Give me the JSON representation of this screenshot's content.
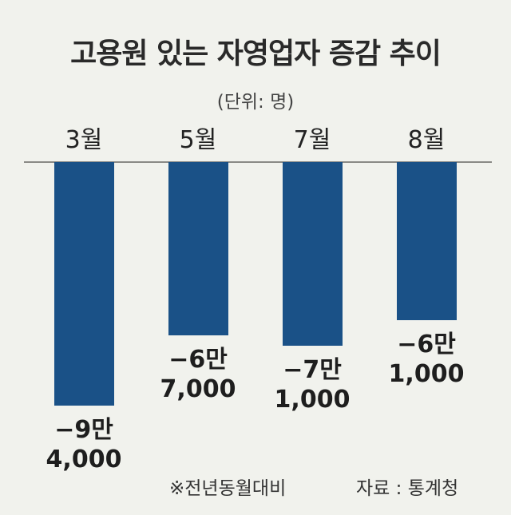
{
  "chart_data": {
    "type": "bar",
    "title": "고용원 있는 자영업자 증감 추이",
    "unit": "(단위: 명)",
    "categories": [
      "3월",
      "5월",
      "7월",
      "8월"
    ],
    "values": [
      -94000,
      -67000,
      -71000,
      -61000
    ],
    "value_labels": [
      [
        "−9만",
        "4,000"
      ],
      [
        "−6만",
        "7,000"
      ],
      [
        "−7만",
        "1,000"
      ],
      [
        "−6만",
        "1,000"
      ]
    ],
    "bar_color": "#1a5187",
    "background_color": "#f1f2ed",
    "grid": false
  },
  "footer": {
    "note": "※전년동월대비",
    "source": "자료 : 통계청"
  }
}
